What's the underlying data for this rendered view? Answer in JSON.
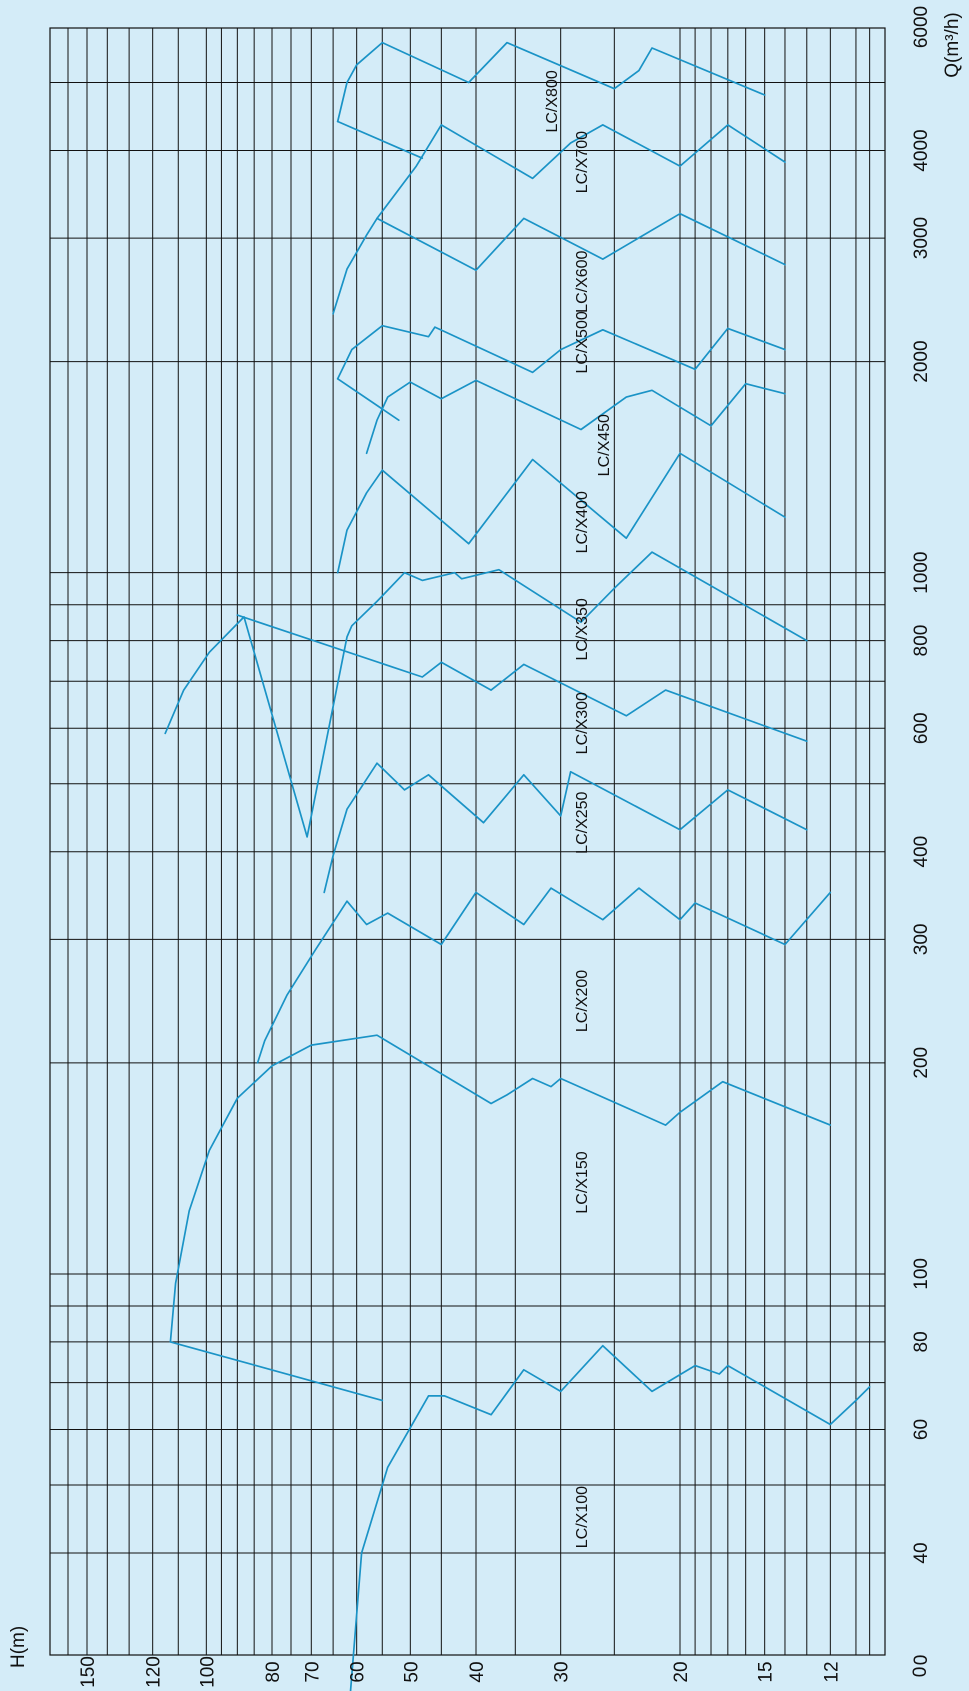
{
  "chart_data": {
    "type": "line",
    "orientation": "rotated 90° counter-clockwise (Q axis vertical on right, H axis horizontal at bottom)",
    "xlabel": "H(m)",
    "ylabel": "Q(m³/h)",
    "x_scale": "log",
    "y_scale": "log",
    "x_ticks": [
      {
        "value": 0,
        "label": "0"
      },
      {
        "value": 12,
        "label": "12"
      },
      {
        "value": 15,
        "label": "15"
      },
      {
        "value": 20,
        "label": "20"
      },
      {
        "value": 30,
        "label": "30"
      },
      {
        "value": 40,
        "label": "40"
      },
      {
        "value": 50,
        "label": "50"
      },
      {
        "value": 60,
        "label": "60"
      },
      {
        "value": 70,
        "label": "70"
      },
      {
        "value": 80,
        "label": "80"
      },
      {
        "value": 100,
        "label": "100"
      },
      {
        "value": 120,
        "label": "120"
      },
      {
        "value": 150,
        "label": "150"
      }
    ],
    "y_ticks": [
      {
        "value": 0,
        "label": "0"
      },
      {
        "value": 40,
        "label": "40"
      },
      {
        "value": 60,
        "label": "60"
      },
      {
        "value": 80,
        "label": "80"
      },
      {
        "value": 100,
        "label": "100"
      },
      {
        "value": 200,
        "label": "200"
      },
      {
        "value": 300,
        "label": "300"
      },
      {
        "value": 400,
        "label": "400"
      },
      {
        "value": 600,
        "label": "600"
      },
      {
        "value": 800,
        "label": "800"
      },
      {
        "value": 1000,
        "label": "1000"
      },
      {
        "value": 2000,
        "label": "2000"
      },
      {
        "value": 3000,
        "label": "3000"
      },
      {
        "value": 4000,
        "label": "4000"
      },
      {
        "value": 6000,
        "label": "6000"
      }
    ],
    "h_grid": [
      10.5,
      11,
      12,
      13,
      14,
      15,
      16,
      17,
      18,
      19,
      20,
      25,
      30,
      35,
      40,
      45,
      50,
      55,
      60,
      65,
      70,
      75,
      80,
      85,
      90,
      95,
      100,
      110,
      120,
      130,
      140,
      150,
      160
    ],
    "q_grid": [
      40,
      50,
      60,
      70,
      80,
      90,
      100,
      200,
      300,
      400,
      500,
      600,
      700,
      800,
      900,
      1000,
      2000,
      3000,
      4000,
      5000,
      6000
    ],
    "grid": true,
    "series": [
      {
        "name": "LC/X100",
        "label_at": {
          "h": 28,
          "q": 45
        },
        "points": [
          [
            62,
            22
          ],
          [
            59,
            40
          ],
          [
            54,
            53
          ],
          [
            47,
            67
          ],
          [
            44.5,
            67
          ],
          [
            38,
            63
          ],
          [
            34,
            73
          ],
          [
            30,
            68
          ],
          [
            26,
            79
          ],
          [
            22,
            68
          ],
          [
            19,
            74
          ],
          [
            17.5,
            72
          ],
          [
            17,
            74
          ],
          [
            12,
            61
          ],
          [
            11,
            66
          ],
          [
            10.5,
            69
          ]
        ]
      },
      {
        "name": "LC/X150",
        "label_at": {
          "h": 28,
          "q": 135
        },
        "points": [
          [
            55,
            66
          ],
          [
            113,
            80
          ],
          [
            111,
            97
          ],
          [
            106,
            123
          ],
          [
            99,
            150
          ],
          [
            90,
            178
          ],
          [
            80,
            198
          ],
          [
            70,
            212
          ],
          [
            56,
            219
          ],
          [
            38,
            175
          ],
          [
            36,
            180
          ],
          [
            33,
            190
          ],
          [
            31,
            185
          ],
          [
            30,
            190
          ],
          [
            21,
            163
          ],
          [
            20,
            170
          ],
          [
            17.3,
            188
          ],
          [
            12,
            163
          ]
        ]
      },
      {
        "name": "LC/X200",
        "label_at": {
          "h": 28,
          "q": 245
        },
        "points": [
          [
            84,
            200
          ],
          [
            82,
            215
          ],
          [
            76,
            250
          ],
          [
            69,
            290
          ],
          [
            62,
            340
          ],
          [
            58,
            315
          ],
          [
            54,
            327
          ],
          [
            45,
            295
          ],
          [
            40,
            350
          ],
          [
            34,
            315
          ],
          [
            31,
            355
          ],
          [
            26,
            320
          ],
          [
            23,
            355
          ],
          [
            20,
            320
          ],
          [
            19,
            338
          ],
          [
            14,
            295
          ],
          [
            12,
            350
          ]
        ]
      },
      {
        "name": "LC/X250",
        "label_at": {
          "h": 28,
          "q": 440
        },
        "points": [
          [
            67,
            350
          ],
          [
            65,
            395
          ],
          [
            62,
            460
          ],
          [
            56,
            535
          ],
          [
            51,
            490
          ],
          [
            47,
            515
          ],
          [
            39,
            440
          ],
          [
            34,
            515
          ],
          [
            30,
            450
          ],
          [
            29,
            520
          ],
          [
            20,
            430
          ],
          [
            17,
            490
          ],
          [
            13,
            430
          ]
        ]
      },
      {
        "name": "LC/X300",
        "label_at": {
          "h": 28,
          "q": 610
        },
        "points": [
          [
            115,
            590
          ],
          [
            108,
            680
          ],
          [
            99,
            770
          ],
          [
            88,
            865
          ],
          [
            71,
            420
          ],
          [
            62,
            810
          ],
          [
            61,
            840
          ],
          [
            56,
            910
          ],
          [
            51,
            1000
          ],
          [
            48,
            975
          ],
          [
            43,
            1000
          ],
          [
            42,
            980
          ],
          [
            37,
            1010
          ],
          [
            28,
            850
          ],
          [
            25,
            950
          ],
          [
            22,
            1070
          ],
          [
            13,
            800
          ]
        ]
      },
      {
        "name": "LC/X350",
        "label_at": {
          "h": 28,
          "q": 830
        },
        "points": [
          [
            90,
            870
          ],
          [
            48,
            710
          ],
          [
            45,
            745
          ],
          [
            38,
            680
          ],
          [
            34,
            740
          ],
          [
            24,
            625
          ],
          [
            21,
            680
          ],
          [
            13,
            575
          ]
        ]
      },
      {
        "name": "LC/X400",
        "label_at": {
          "h": 28,
          "q": 1180
        },
        "points": [
          [
            64,
            1000
          ],
          [
            62,
            1150
          ],
          [
            58,
            1300
          ],
          [
            55,
            1400
          ],
          [
            41,
            1100
          ],
          [
            33,
            1450
          ],
          [
            24,
            1120
          ],
          [
            20,
            1480
          ],
          [
            14,
            1200
          ]
        ]
      },
      {
        "name": "LC/X450",
        "label_at": {
          "h": 26,
          "q": 1520
        },
        "points": [
          [
            58,
            1480
          ],
          [
            56,
            1650
          ],
          [
            54,
            1780
          ],
          [
            50,
            1870
          ],
          [
            45,
            1770
          ],
          [
            40,
            1880
          ],
          [
            28,
            1600
          ],
          [
            24,
            1780
          ],
          [
            22,
            1820
          ],
          [
            18,
            1620
          ],
          [
            16,
            1860
          ],
          [
            14,
            1800
          ]
        ]
      },
      {
        "name": "LC/X500",
        "label_at": {
          "h": 28,
          "q": 2130
        },
        "points": [
          [
            64,
            1890
          ],
          [
            61,
            2080
          ],
          [
            55,
            2250
          ],
          [
            47,
            2170
          ],
          [
            46,
            2240
          ],
          [
            33,
            1930
          ],
          [
            30,
            2080
          ],
          [
            26,
            2220
          ],
          [
            19,
            1950
          ],
          [
            17,
            2230
          ],
          [
            14,
            2080
          ]
        ]
      },
      {
        "name": "LC/X600",
        "label_at": {
          "h": 28,
          "q": 2600
        },
        "points": [
          [
            65,
            2340
          ],
          [
            62,
            2710
          ],
          [
            58,
            3030
          ],
          [
            56,
            3200
          ],
          [
            40,
            2700
          ],
          [
            34,
            3200
          ],
          [
            26,
            2800
          ],
          [
            20,
            3250
          ],
          [
            14,
            2750
          ]
        ]
      },
      {
        "name": "LC/X700",
        "label_at": {
          "h": 28,
          "q": 3850
        },
        "points": [
          [
            56,
            3200
          ],
          [
            49,
            3800
          ],
          [
            45,
            4350
          ],
          [
            33,
            3650
          ],
          [
            29,
            4100
          ],
          [
            26,
            4350
          ],
          [
            20,
            3800
          ],
          [
            17,
            4350
          ],
          [
            14,
            3850
          ]
        ]
      },
      {
        "name": "LC/X800",
        "label_at": {
          "h": 31,
          "q": 4700
        },
        "points": [
          [
            64,
            4400
          ],
          [
            62,
            5000
          ],
          [
            60,
            5300
          ],
          [
            55,
            5700
          ],
          [
            41,
            5000
          ],
          [
            36,
            5700
          ],
          [
            25,
            4900
          ],
          [
            23,
            5200
          ],
          [
            22,
            5600
          ],
          [
            15,
            4800
          ]
        ]
      },
      {
        "name": "LC/X800-connector",
        "points": [
          [
            64,
            4400
          ],
          [
            48,
            3900
          ]
        ]
      },
      {
        "name": "LC/X600-connector",
        "points": [
          [
            64,
            1890
          ],
          [
            52,
            1650
          ]
        ]
      }
    ]
  }
}
